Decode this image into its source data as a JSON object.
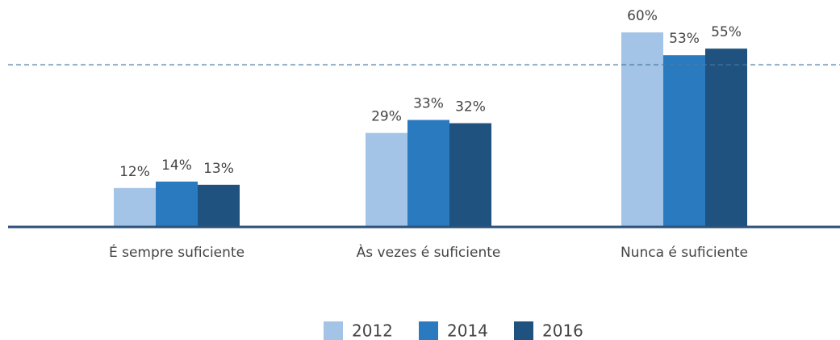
{
  "chart_data": {
    "type": "bar",
    "categories": [
      "É sempre suficiente",
      "Às vezes é suficiente",
      "Nunca é suficiente"
    ],
    "series": [
      {
        "name": "2012",
        "color": "#a3c4e6",
        "values": [
          12,
          29,
          60
        ],
        "value_labels": [
          "12%",
          "29%",
          "60%"
        ]
      },
      {
        "name": "2014",
        "color": "#2a7abf",
        "values": [
          14,
          33,
          53
        ],
        "value_labels": [
          "14%",
          "33%",
          "53%"
        ]
      },
      {
        "name": "2016",
        "color": "#1f527f",
        "values": [
          13,
          32,
          55
        ],
        "value_labels": [
          "13%",
          "32%",
          "55%"
        ]
      }
    ],
    "ylim": [
      0,
      70
    ],
    "reference_line": 50,
    "legend": "bottom"
  }
}
